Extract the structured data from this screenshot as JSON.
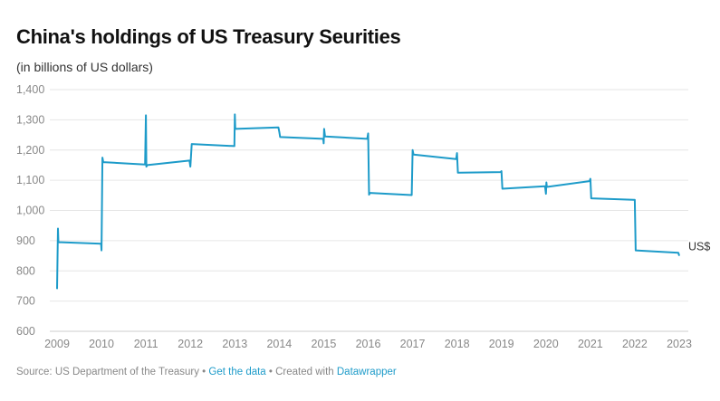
{
  "chart_data": {
    "type": "line",
    "title": "China's holdings of US Treasury Seurities",
    "subtitle": "(in billions of US dollars)",
    "xlabel": "",
    "ylabel": "",
    "xlim": [
      2009,
      2023
    ],
    "ylim": [
      600,
      1400
    ],
    "x_ticks": [
      "2009",
      "2010",
      "2011",
      "2012",
      "2013",
      "2014",
      "2015",
      "2016",
      "2017",
      "2018",
      "2019",
      "2020",
      "2021",
      "2022",
      "2023"
    ],
    "y_ticks": [
      "600",
      "700",
      "800",
      "900",
      "1,000",
      "1,100",
      "1,200",
      "1,300",
      "1,400"
    ],
    "grid": true,
    "color": "#1d9bc9",
    "series": [
      {
        "name": "US$",
        "x": [
          2009.0,
          2009.02,
          2009.03,
          2009.99,
          2010.0,
          2010.02,
          2010.04,
          2010.98,
          2011.0,
          2011.01,
          2011.03,
          2011.98,
          2012.0,
          2012.03,
          2012.99,
          2013.0,
          2013.01,
          2013.98,
          2014.0,
          2014.02,
          2014.99,
          2015.0,
          2015.01,
          2015.03,
          2015.98,
          2016.0,
          2016.02,
          2016.04,
          2016.98,
          2017.0,
          2017.02,
          2017.98,
          2018.0,
          2018.02,
          2018.98,
          2019.0,
          2019.02,
          2019.98,
          2020.0,
          2020.01,
          2020.02,
          2020.98,
          2021.0,
          2021.02,
          2021.98,
          2022.0,
          2022.02,
          2022.98,
          2023.0
        ],
        "y": [
          740,
          940,
          895,
          890,
          868,
          1175,
          1160,
          1152,
          1315,
          1145,
          1150,
          1165,
          1145,
          1220,
          1213,
          1318,
          1270,
          1275,
          1260,
          1243,
          1237,
          1222,
          1270,
          1245,
          1237,
          1255,
          1052,
          1058,
          1051,
          1200,
          1185,
          1170,
          1190,
          1125,
          1127,
          1130,
          1072,
          1080,
          1055,
          1093,
          1078,
          1097,
          1105,
          1040,
          1035,
          1035,
          868,
          860,
          850
        ]
      }
    ]
  },
  "footer": {
    "source": "Source: US Department of the Treasury • ",
    "get_data": "Get the data",
    "created": " • Created with ",
    "datawrapper": "Datawrapper"
  }
}
